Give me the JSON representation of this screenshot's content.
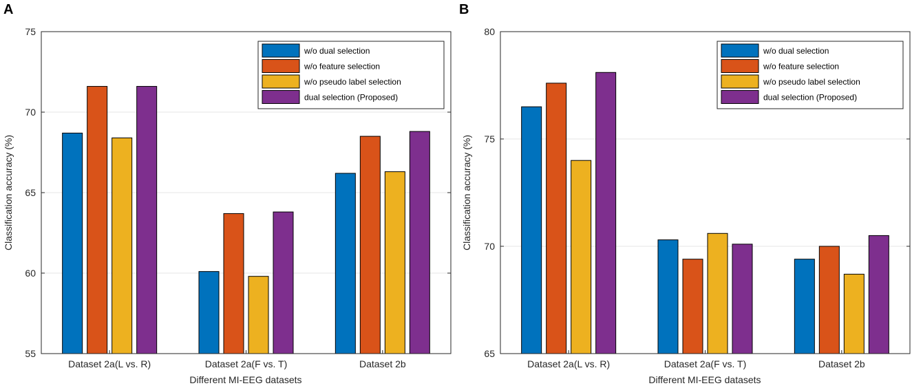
{
  "figure": {
    "background": "#ffffff"
  },
  "chart_data": [
    {
      "panel_label": "A",
      "type": "bar",
      "title": "",
      "xlabel": "Different MI-EEG datasets",
      "ylabel": "Classification accuracy (%)",
      "ylim": [
        55,
        75
      ],
      "yticks": [
        55,
        60,
        65,
        70,
        75
      ],
      "grid": "y",
      "legend_position": "top-right",
      "categories": [
        "Dataset 2a(L vs. R)",
        "Dataset 2a(F vs. T)",
        "Dataset 2b"
      ],
      "series": [
        {
          "name": "w/o dual selection",
          "color": "#0072bd",
          "values": [
            68.7,
            60.1,
            66.2
          ]
        },
        {
          "name": "w/o feature selection",
          "color": "#d95319",
          "values": [
            71.6,
            63.7,
            68.5
          ]
        },
        {
          "name": "w/o pseudo label selection",
          "color": "#edb120",
          "values": [
            68.4,
            59.8,
            66.3
          ]
        },
        {
          "name": "dual selection (Proposed)",
          "color": "#7e2f8e",
          "values": [
            71.6,
            63.8,
            68.8
          ]
        }
      ]
    },
    {
      "panel_label": "B",
      "type": "bar",
      "title": "",
      "xlabel": "Different MI-EEG datasets",
      "ylabel": "Classification accuracy (%)",
      "ylim": [
        65,
        80
      ],
      "yticks": [
        65,
        70,
        75,
        80
      ],
      "grid": "y",
      "legend_position": "top-right",
      "categories": [
        "Dataset 2a(L vs. R)",
        "Dataset 2a(F vs. T)",
        "Dataset 2b"
      ],
      "series": [
        {
          "name": "w/o dual selection",
          "color": "#0072bd",
          "values": [
            76.5,
            70.3,
            69.4
          ]
        },
        {
          "name": "w/o feature selection",
          "color": "#d95319",
          "values": [
            77.6,
            69.4,
            70.0
          ]
        },
        {
          "name": "w/o pseudo label selection",
          "color": "#edb120",
          "values": [
            74.0,
            70.6,
            68.7
          ]
        },
        {
          "name": "dual selection (Proposed)",
          "color": "#7e2f8e",
          "values": [
            78.1,
            70.1,
            70.5
          ]
        }
      ]
    }
  ]
}
